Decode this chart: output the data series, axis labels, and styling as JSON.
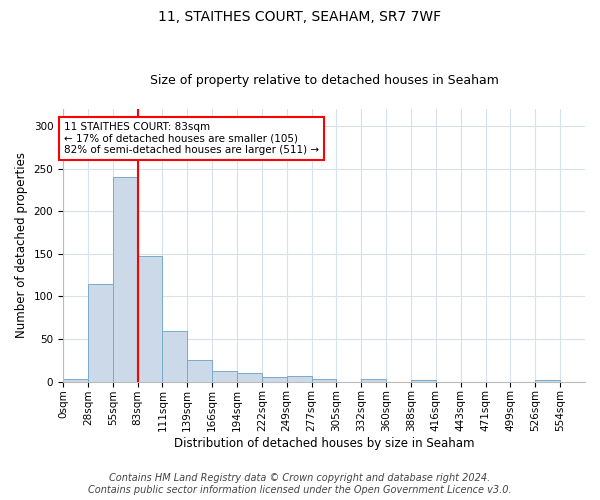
{
  "title": "11, STAITHES COURT, SEAHAM, SR7 7WF",
  "subtitle": "Size of property relative to detached houses in Seaham",
  "xlabel": "Distribution of detached houses by size in Seaham",
  "ylabel": "Number of detached properties",
  "footer_line1": "Contains HM Land Registry data © Crown copyright and database right 2024.",
  "footer_line2": "Contains public sector information licensed under the Open Government Licence v3.0.",
  "annotation_text": "11 STAITHES COURT: 83sqm\n← 17% of detached houses are smaller (105)\n82% of semi-detached houses are larger (511) →",
  "bar_color": "#ccd9e8",
  "bar_edge_color": "#7aaac8",
  "vline_color": "red",
  "vline_x": 83,
  "bin_edges": [
    0,
    27.5,
    55,
    82.5,
    110,
    137.5,
    165,
    192.5,
    220,
    247.5,
    275,
    302.5,
    330,
    357.5,
    385,
    412.5,
    440,
    467.5,
    495,
    522.5,
    550,
    577.5
  ],
  "bin_labels": [
    "0sqm",
    "28sqm",
    "55sqm",
    "83sqm",
    "111sqm",
    "139sqm",
    "166sqm",
    "194sqm",
    "222sqm",
    "249sqm",
    "277sqm",
    "305sqm",
    "332sqm",
    "360sqm",
    "388sqm",
    "416sqm",
    "443sqm",
    "471sqm",
    "499sqm",
    "526sqm",
    "554sqm"
  ],
  "bar_heights": [
    3,
    115,
    240,
    148,
    60,
    25,
    13,
    10,
    5,
    7,
    3,
    0,
    3,
    0,
    2,
    0,
    0,
    0,
    0,
    2
  ],
  "ylim": [
    0,
    320
  ],
  "yticks": [
    0,
    50,
    100,
    150,
    200,
    250,
    300
  ],
  "grid_color": "#d8e0ec",
  "title_fontsize": 10,
  "subtitle_fontsize": 9,
  "axis_label_fontsize": 8.5,
  "tick_fontsize": 7.5,
  "footer_fontsize": 7
}
